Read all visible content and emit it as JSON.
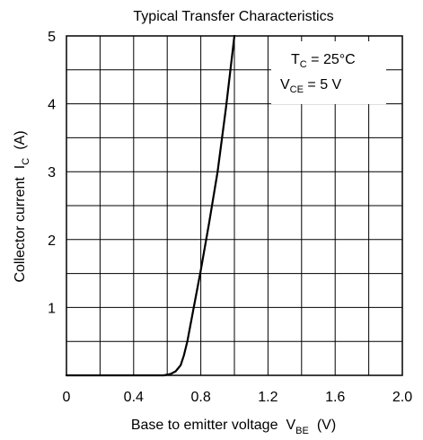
{
  "chart_data": {
    "type": "line",
    "title": "Typical Transfer Characteristics",
    "xlabel": {
      "text": "Base to emitter voltage",
      "symbol": "V",
      "subscript": "BE",
      "unit": "(V)"
    },
    "ylabel": {
      "text": "Collector current",
      "symbol": "I",
      "subscript": "C",
      "unit": "(A)"
    },
    "xlim": [
      0,
      2.0
    ],
    "ylim": [
      0,
      5
    ],
    "x_ticks": [
      "0",
      "0.4",
      "0.8",
      "1.2",
      "1.6",
      "2.0"
    ],
    "y_ticks": [
      "1",
      "2",
      "3",
      "4",
      "5"
    ],
    "grid": true,
    "annotations": [
      {
        "symbol": "T",
        "subscript": "C",
        "text": " = 25°C"
      },
      {
        "symbol": "V",
        "subscript": "CE",
        "text": " = 5 V"
      }
    ],
    "series": [
      {
        "x": [
          0,
          0.2,
          0.4,
          0.5,
          0.58,
          0.62,
          0.65,
          0.68,
          0.7,
          0.72,
          0.75,
          0.8,
          0.85,
          0.9,
          0.95,
          1.0
        ],
        "y": [
          0,
          0,
          0,
          0,
          0,
          0.02,
          0.06,
          0.15,
          0.3,
          0.5,
          0.9,
          1.55,
          2.25,
          3.0,
          3.95,
          5.0
        ]
      }
    ]
  }
}
